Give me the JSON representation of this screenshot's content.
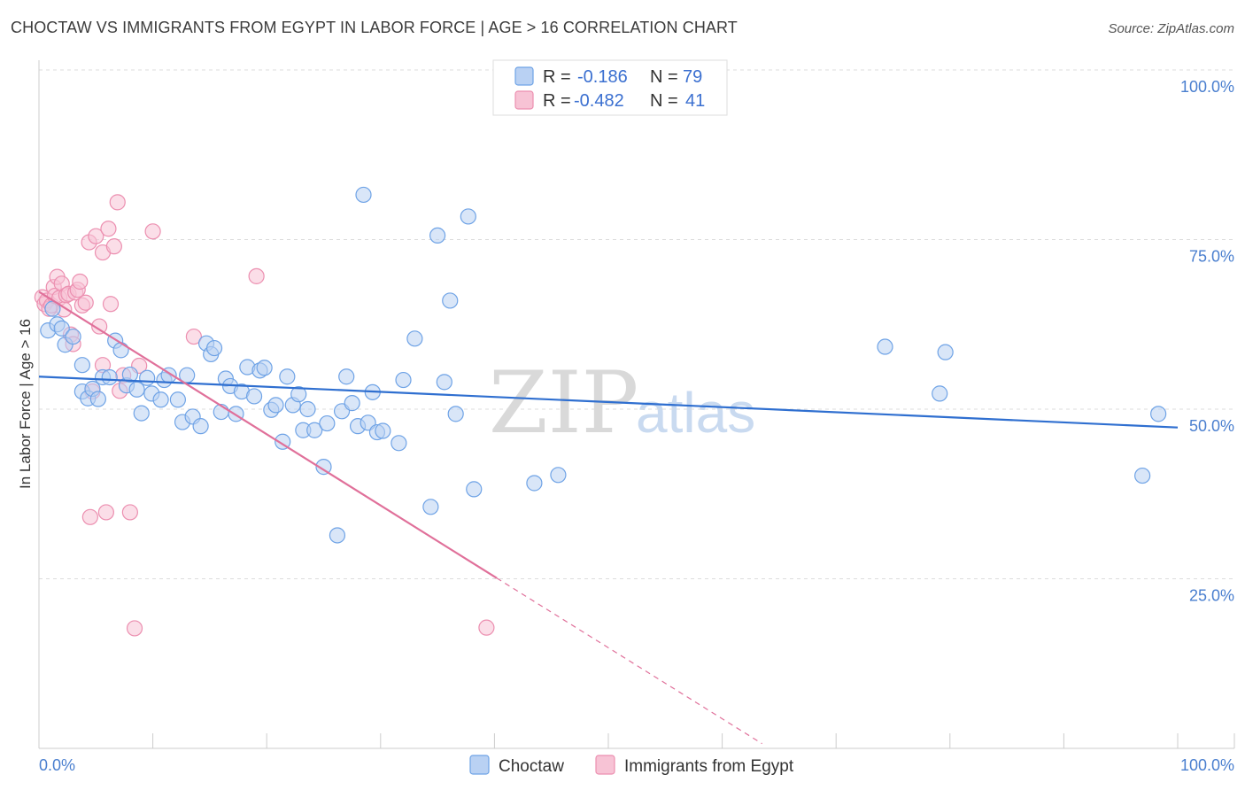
{
  "title": "CHOCTAW VS IMMIGRANTS FROM EGYPT IN LABOR FORCE | AGE > 16 CORRELATION CHART",
  "source": "Source: ZipAtlas.com",
  "watermark": {
    "zip": "ZIP",
    "atlas": "atlas"
  },
  "colors": {
    "choctaw": "#6fa3e6",
    "choctaw_fill": "#b9d1f3",
    "egypt": "#ec8fb0",
    "egypt_fill": "#f7c3d5",
    "choctaw_line": "#2f6fd0",
    "egypt_line": "#e0709a",
    "tick": "#4a7fcf"
  },
  "legend": {
    "r_label": "R =",
    "n_label": "N =",
    "rows": [
      {
        "r": "-0.186",
        "n": "79"
      },
      {
        "r": "-0.482",
        "n": "41"
      }
    ]
  },
  "chart_data": {
    "type": "scatter",
    "title": "CHOCTAW VS IMMIGRANTS FROM EGYPT IN LABOR FORCE | AGE > 16 CORRELATION CHART",
    "xlabel": "",
    "ylabel": "In Labor Force | Age > 16",
    "xlim": [
      0,
      100
    ],
    "ylim": [
      0,
      100
    ],
    "x_tick_labels": [
      "0.0%",
      "100.0%"
    ],
    "y_tick_labels": [
      "25.0%",
      "50.0%",
      "75.0%",
      "100.0%"
    ],
    "y_ticks": [
      25,
      50,
      75,
      100
    ],
    "grid": true,
    "legend_position": "bottom-center",
    "series": [
      {
        "name": "Choctaw",
        "r": -0.186,
        "n": 79,
        "trend": {
          "x": [
            0,
            100
          ],
          "y": [
            54.8,
            47.3
          ]
        },
        "points": [
          [
            0.8,
            61.6
          ],
          [
            1.2,
            64.8
          ],
          [
            1.6,
            62.5
          ],
          [
            2.0,
            61.9
          ],
          [
            2.3,
            59.5
          ],
          [
            3.0,
            60.7
          ],
          [
            3.8,
            52.6
          ],
          [
            3.8,
            56.5
          ],
          [
            4.3,
            51.6
          ],
          [
            4.7,
            53.0
          ],
          [
            5.2,
            51.5
          ],
          [
            5.6,
            54.7
          ],
          [
            6.2,
            54.7
          ],
          [
            6.7,
            60.1
          ],
          [
            7.2,
            58.7
          ],
          [
            7.7,
            53.5
          ],
          [
            8.0,
            55.1
          ],
          [
            8.6,
            52.9
          ],
          [
            9.0,
            49.4
          ],
          [
            9.5,
            54.6
          ],
          [
            9.9,
            52.3
          ],
          [
            10.7,
            51.4
          ],
          [
            11.0,
            54.3
          ],
          [
            11.4,
            55.0
          ],
          [
            12.2,
            51.4
          ],
          [
            12.6,
            48.1
          ],
          [
            13.0,
            55.0
          ],
          [
            13.5,
            48.9
          ],
          [
            14.2,
            47.5
          ],
          [
            14.7,
            59.7
          ],
          [
            15.1,
            58.1
          ],
          [
            15.4,
            59.0
          ],
          [
            16.0,
            49.6
          ],
          [
            16.4,
            54.5
          ],
          [
            16.8,
            53.4
          ],
          [
            17.3,
            49.3
          ],
          [
            17.8,
            52.6
          ],
          [
            18.3,
            56.2
          ],
          [
            18.9,
            51.9
          ],
          [
            19.4,
            55.7
          ],
          [
            19.8,
            56.1
          ],
          [
            20.4,
            49.9
          ],
          [
            20.8,
            50.6
          ],
          [
            21.4,
            45.2
          ],
          [
            21.8,
            54.8
          ],
          [
            22.3,
            50.6
          ],
          [
            22.8,
            52.2
          ],
          [
            23.2,
            46.9
          ],
          [
            23.6,
            50.0
          ],
          [
            24.2,
            46.9
          ],
          [
            25.0,
            41.5
          ],
          [
            25.3,
            47.9
          ],
          [
            26.2,
            31.4
          ],
          [
            26.6,
            49.7
          ],
          [
            27.0,
            54.8
          ],
          [
            27.5,
            50.9
          ],
          [
            28.0,
            47.5
          ],
          [
            28.5,
            81.6
          ],
          [
            28.9,
            48.0
          ],
          [
            29.3,
            52.5
          ],
          [
            29.7,
            46.6
          ],
          [
            30.2,
            46.8
          ],
          [
            31.6,
            45.0
          ],
          [
            32.0,
            54.3
          ],
          [
            33.0,
            60.4
          ],
          [
            34.4,
            35.6
          ],
          [
            35.0,
            75.6
          ],
          [
            35.6,
            54.0
          ],
          [
            36.1,
            66.0
          ],
          [
            36.6,
            49.3
          ],
          [
            37.7,
            78.4
          ],
          [
            38.2,
            38.2
          ],
          [
            43.5,
            39.1
          ],
          [
            45.6,
            40.3
          ],
          [
            74.3,
            59.2
          ],
          [
            79.1,
            52.3
          ],
          [
            79.6,
            58.4
          ],
          [
            96.9,
            40.2
          ],
          [
            98.3,
            49.3
          ]
        ]
      },
      {
        "name": "Immigrants from Egypt",
        "r": -0.482,
        "n": 41,
        "trend": {
          "x": [
            0,
            40.2
          ],
          "y": [
            67.3,
            25.1
          ],
          "dashed_to": {
            "x": 63.5,
            "y": 0.7
          }
        },
        "points": [
          [
            0.3,
            66.5
          ],
          [
            0.5,
            65.5
          ],
          [
            0.7,
            66.0
          ],
          [
            0.9,
            64.8
          ],
          [
            1.1,
            65.3
          ],
          [
            1.3,
            68.0
          ],
          [
            1.4,
            66.7
          ],
          [
            1.6,
            69.5
          ],
          [
            1.8,
            66.4
          ],
          [
            2.0,
            68.5
          ],
          [
            2.2,
            64.7
          ],
          [
            2.4,
            66.8
          ],
          [
            2.6,
            67.0
          ],
          [
            2.8,
            61.0
          ],
          [
            3.0,
            59.6
          ],
          [
            3.2,
            67.2
          ],
          [
            3.4,
            67.6
          ],
          [
            3.6,
            68.8
          ],
          [
            3.8,
            65.3
          ],
          [
            4.1,
            65.7
          ],
          [
            4.4,
            74.6
          ],
          [
            4.5,
            34.1
          ],
          [
            4.7,
            52.6
          ],
          [
            5.0,
            75.5
          ],
          [
            5.3,
            62.2
          ],
          [
            5.6,
            73.1
          ],
          [
            5.6,
            56.5
          ],
          [
            5.9,
            34.8
          ],
          [
            6.1,
            76.6
          ],
          [
            6.3,
            65.5
          ],
          [
            6.6,
            74.0
          ],
          [
            6.9,
            80.5
          ],
          [
            7.1,
            52.7
          ],
          [
            7.4,
            55.0
          ],
          [
            8.0,
            34.8
          ],
          [
            8.4,
            17.7
          ],
          [
            8.8,
            56.4
          ],
          [
            10.0,
            76.2
          ],
          [
            13.6,
            60.7
          ],
          [
            19.1,
            69.6
          ],
          [
            39.3,
            17.8
          ]
        ]
      }
    ]
  },
  "bottom_legend": [
    {
      "label": "Choctaw"
    },
    {
      "label": "Immigrants from Egypt"
    }
  ]
}
